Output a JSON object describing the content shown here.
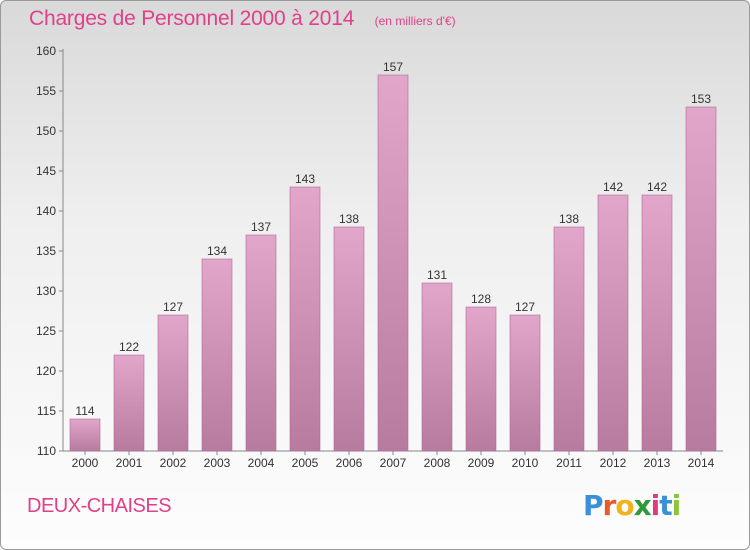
{
  "title": "Charges de Personnel 2000 à 2014",
  "subtitle": "(en milliers d'€)",
  "commune": "DEUX-CHAISES",
  "logo": {
    "text": "Proxiti",
    "letters": [
      {
        "ch": "P",
        "color": "#3a8fd6"
      },
      {
        "ch": "r",
        "color": "#e85a2a"
      },
      {
        "ch": "o",
        "color": "#f2b21b"
      },
      {
        "ch": "x",
        "color": "#2f9a3a"
      },
      {
        "ch": "i",
        "color": "#e23a7a"
      },
      {
        "ch": "t",
        "color": "#3a8fd6"
      },
      {
        "ch": "i",
        "color": "#8cc43a"
      }
    ]
  },
  "colors": {
    "bar_top": "#e2a6cb",
    "bar_bottom": "#b77ba0",
    "bar_stroke": "#b06a95",
    "accent": "#e0408a"
  },
  "chart_data": {
    "type": "bar",
    "categories": [
      "2000",
      "2001",
      "2002",
      "2003",
      "2004",
      "2005",
      "2006",
      "2007",
      "2008",
      "2009",
      "2010",
      "2011",
      "2012",
      "2013",
      "2014"
    ],
    "values": [
      114,
      122,
      127,
      134,
      137,
      143,
      138,
      157,
      131,
      128,
      127,
      138,
      142,
      142,
      153
    ],
    "ylim": [
      110,
      160
    ],
    "yticks": [
      110,
      115,
      120,
      125,
      130,
      135,
      140,
      145,
      150,
      155,
      160
    ],
    "grid": false,
    "data_labels": true
  }
}
